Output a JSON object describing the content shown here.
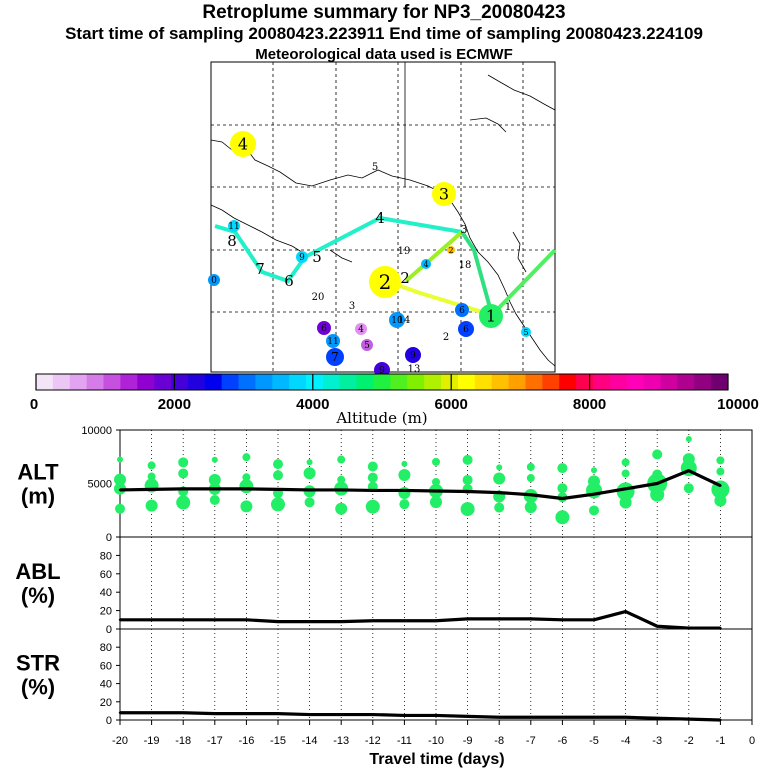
{
  "header": {
    "title": "Retroplume summary for NP3_20080423",
    "sampling": "Start time of sampling 20080423.223911      End time of sampling 20080423.224109",
    "met": "Meteorological data used is ECMWF"
  },
  "colorbar": {
    "ticks": [
      "0",
      "2000",
      "4000",
      "6000",
      "8000",
      "10000"
    ],
    "label": "Altitude  (m)",
    "colors": [
      "#f4e4f8",
      "#ecc6f4",
      "#e2a4f0",
      "#d67ce8",
      "#c650e0",
      "#b022d8",
      "#9000d0",
      "#6a00d4",
      "#4400d8",
      "#2200e0",
      "#0000f0",
      "#0040ff",
      "#0070ff",
      "#0098ff",
      "#00b8ff",
      "#00d8ff",
      "#00f0ff",
      "#00f0d0",
      "#00f0a0",
      "#00f070",
      "#20f040",
      "#50f020",
      "#80f000",
      "#b0f000",
      "#e0f000",
      "#ffff00",
      "#ffe000",
      "#ffc000",
      "#ffa000",
      "#ff7000",
      "#ff4000",
      "#ff0000",
      "#ff0050",
      "#ff0080",
      "#ff00a0",
      "#ff00b8",
      "#ee00b0",
      "#d000a0",
      "#b00090",
      "#900080",
      "#700070"
    ]
  },
  "map": {
    "center_labels": [
      "1",
      "2",
      "3",
      "4"
    ],
    "trajectory_labels": [
      "1",
      "2",
      "3",
      "4",
      "5",
      "6",
      "7",
      "8",
      "9",
      "10",
      "11",
      "13",
      "14",
      "18",
      "19",
      "20"
    ]
  },
  "chart_data": [
    {
      "type": "line",
      "panel": "ALT",
      "ylabel": "ALT (m)",
      "xlabel": "Travel time (days)",
      "x": [
        -20,
        -19,
        -18,
        -17,
        -16,
        -15,
        -14,
        -13,
        -12,
        -11,
        -10,
        -9,
        -8,
        -7,
        -6,
        -5,
        -4,
        -3,
        -2,
        -1
      ],
      "values": [
        4400,
        4450,
        4500,
        4500,
        4500,
        4450,
        4400,
        4400,
        4350,
        4350,
        4300,
        4250,
        4150,
        3950,
        3600,
        4000,
        4500,
        5000,
        6200,
        4800
      ],
      "ylim": [
        0,
        10000
      ],
      "yticks": [
        "0",
        "5000",
        "10000"
      ],
      "xlim": [
        -20,
        0
      ],
      "xticks": [
        "-20",
        "-19",
        "-18",
        "-17",
        "-16",
        "-15",
        "-14",
        "-13",
        "-12",
        "-11",
        "-10",
        "-9",
        "-8",
        "-7",
        "-6",
        "-5",
        "-4",
        "-3",
        "-2",
        "-1",
        "0"
      ],
      "dot_color": "#22ee66"
    },
    {
      "type": "line",
      "panel": "ABL",
      "ylabel": "ABL (%)",
      "x": [
        -20,
        -19,
        -18,
        -17,
        -16,
        -15,
        -14,
        -13,
        -12,
        -11,
        -10,
        -9,
        -8,
        -7,
        -6,
        -5,
        -4,
        -3,
        -2,
        -1
      ],
      "values": [
        10,
        10,
        10,
        10,
        10,
        8,
        8,
        8,
        9,
        9,
        9,
        11,
        11,
        11,
        10,
        10,
        19,
        3,
        1,
        1
      ],
      "ylim": [
        0,
        100
      ],
      "yticks": [
        "0",
        "20",
        "40",
        "60",
        "80"
      ]
    },
    {
      "type": "line",
      "panel": "STR",
      "ylabel": "STR (%)",
      "x": [
        -20,
        -19,
        -18,
        -17,
        -16,
        -15,
        -14,
        -13,
        -12,
        -11,
        -10,
        -9,
        -8,
        -7,
        -6,
        -5,
        -4,
        -3,
        -2,
        -1
      ],
      "values": [
        8,
        8,
        8,
        7,
        7,
        7,
        6,
        6,
        6,
        5,
        5,
        4,
        3,
        3,
        3,
        3,
        3,
        2,
        1,
        0
      ],
      "ylim": [
        0,
        100
      ],
      "yticks": [
        "0",
        "20",
        "40",
        "60",
        "80"
      ]
    }
  ],
  "panel_labels": {
    "alt": [
      "ALT",
      "(m)"
    ],
    "abl": [
      "ABL",
      "(%)"
    ],
    "str": [
      "STR",
      "(%)"
    ]
  }
}
